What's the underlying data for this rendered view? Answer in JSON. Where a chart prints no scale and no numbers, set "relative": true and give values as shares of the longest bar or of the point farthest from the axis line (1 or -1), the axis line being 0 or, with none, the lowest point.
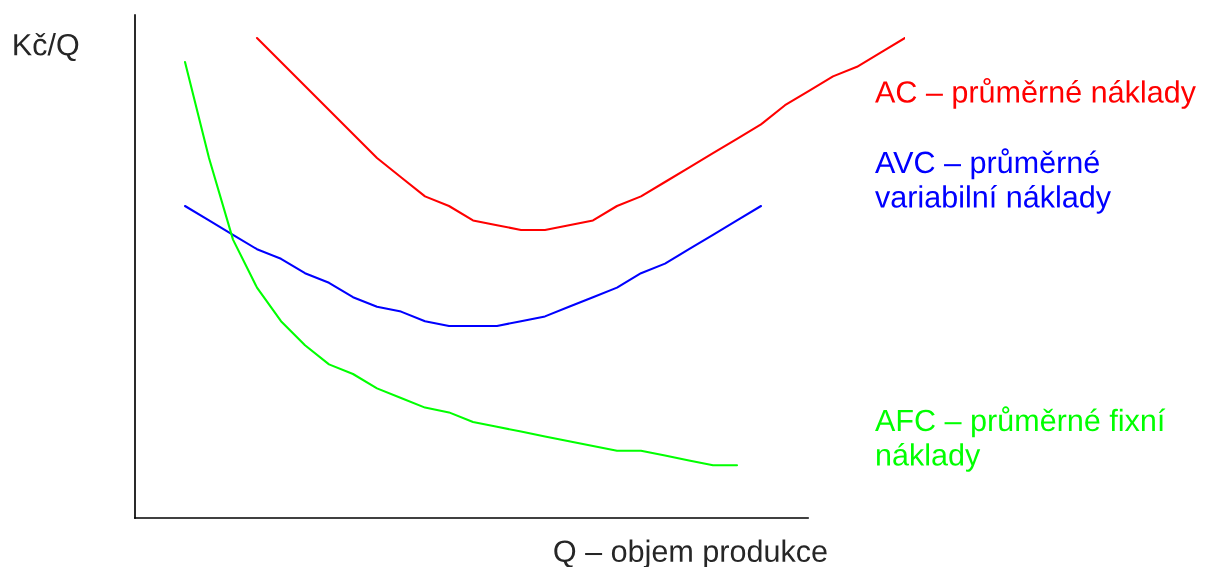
{
  "chart_data": {
    "type": "line",
    "relative": true,
    "xlabel": "Q – objem produkce",
    "ylabel": "Kč/Q",
    "legend": false,
    "categories": [
      null,
      null,
      null,
      null,
      null,
      null,
      null,
      null,
      null,
      null,
      null,
      null,
      null,
      null,
      null,
      null,
      null,
      null,
      null,
      null,
      null,
      null,
      null,
      null,
      null,
      null,
      null,
      null,
      null,
      null,
      null
    ],
    "series": [
      {
        "name": "AC – průměrné náklady",
        "color": "#ff0000",
        "values": [
          null,
          null,
          null,
          1.0,
          0.95,
          0.9,
          0.85,
          0.8,
          0.75,
          0.71,
          0.67,
          0.65,
          0.62,
          0.61,
          0.6,
          0.6,
          0.61,
          0.62,
          0.65,
          0.67,
          0.7,
          0.73,
          0.76,
          0.79,
          0.82,
          0.86,
          0.89,
          0.92,
          0.94,
          0.97,
          1.0
        ]
      },
      {
        "name": "AVC – průměrné variabilní náklady",
        "color": "#0000ff",
        "values": [
          0.65,
          0.62,
          0.59,
          0.56,
          0.54,
          0.51,
          0.49,
          0.46,
          0.44,
          0.43,
          0.41,
          0.4,
          0.4,
          0.4,
          0.41,
          0.42,
          0.44,
          0.46,
          0.48,
          0.51,
          0.53,
          0.56,
          0.59,
          0.62,
          0.65,
          null,
          null,
          null,
          null,
          null,
          null
        ]
      },
      {
        "name": "AFC – průměrné fixní náklady",
        "color": "#00ff00",
        "values": [
          0.95,
          0.75,
          0.58,
          0.48,
          0.41,
          0.36,
          0.32,
          0.3,
          0.27,
          0.25,
          0.23,
          0.22,
          0.2,
          0.19,
          0.18,
          0.17,
          0.16,
          0.15,
          0.14,
          0.14,
          0.13,
          0.12,
          0.11,
          0.11,
          null,
          null,
          null,
          null,
          null,
          null,
          null
        ]
      }
    ]
  }
}
